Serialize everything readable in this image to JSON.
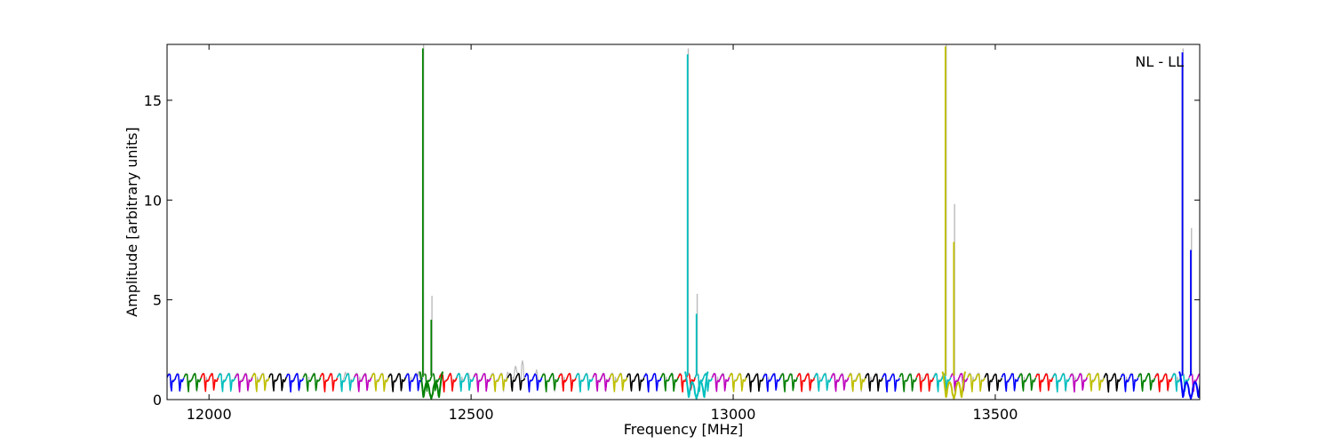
{
  "chart_data": {
    "type": "line",
    "xlabel": "Frequency [MHz]",
    "ylabel": "Amplitude [arbitrary units]",
    "annotation": "NL - LL",
    "xlim": [
      11920,
      13890
    ],
    "ylim": [
      0,
      17.8
    ],
    "x_ticks": [
      12000,
      12500,
      13000,
      13500
    ],
    "y_ticks": [
      0,
      5,
      10,
      15
    ],
    "grid": false,
    "band": {
      "start": 11920,
      "end": 13890,
      "segment_width": 32.5,
      "dip_period": 16.25,
      "baseline": 1.2,
      "dip_min": 0.3,
      "colors": [
        "#0000ff",
        "#008000",
        "#ff0000",
        "#00bfbf",
        "#bf00bf",
        "#bfbf00",
        "#000000"
      ]
    },
    "background_color": "#bbbbbb",
    "background_bumps": [
      {
        "x": 12260,
        "y": 1.45
      },
      {
        "x": 12400,
        "y": 1.4
      },
      {
        "x": 12495,
        "y": 1.4
      },
      {
        "x": 12510,
        "y": 1.35
      },
      {
        "x": 12570,
        "y": 1.45
      },
      {
        "x": 12585,
        "y": 1.75
      },
      {
        "x": 12598,
        "y": 1.95
      },
      {
        "x": 12625,
        "y": 1.5
      }
    ],
    "spikes": [
      {
        "x": 12408,
        "y": 17.6,
        "gray": 17.8,
        "color": "#008000"
      },
      {
        "x": 12424,
        "y": 4.0,
        "gray": 5.2,
        "color": "#008000"
      },
      {
        "x": 12913,
        "y": 17.3,
        "gray": 17.6,
        "color": "#00bfbf"
      },
      {
        "x": 12930,
        "y": 4.3,
        "gray": 5.3,
        "color": "#00bfbf"
      },
      {
        "x": 13405,
        "y": 17.7,
        "gray": 17.8,
        "color": "#bfbf00"
      },
      {
        "x": 13421,
        "y": 7.9,
        "gray": 9.8,
        "color": "#bfbf00"
      },
      {
        "x": 13857,
        "y": 17.4,
        "gray": 17.6,
        "color": "#0000ff"
      },
      {
        "x": 13873,
        "y": 7.5,
        "gray": 8.6,
        "color": "#0000ff"
      }
    ],
    "deep_dips": [
      {
        "x": 12424,
        "color": "#008000"
      },
      {
        "x": 12930,
        "color": "#00bfbf"
      },
      {
        "x": 13421,
        "color": "#bfbf00"
      },
      {
        "x": 13873,
        "color": "#0000ff"
      }
    ]
  }
}
